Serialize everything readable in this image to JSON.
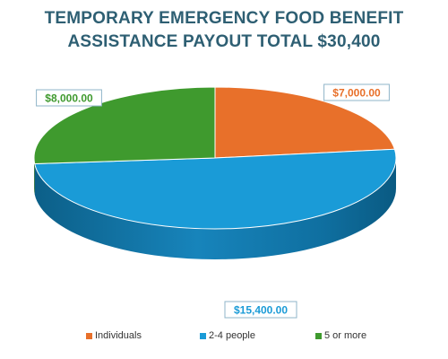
{
  "chart_data": {
    "type": "pie",
    "title_lines": [
      "TEMPORARY EMERGENCY FOOD BENEFIT",
      "ASSISTANCE PAYOUT TOTAL $30,400"
    ],
    "categories": [
      "Individuals",
      "2-4 people",
      "5 or more"
    ],
    "values": [
      7000,
      15400,
      8000
    ],
    "data_labels": [
      "$7,000.00",
      "$15,400.00",
      "$8,000.00"
    ],
    "colors": [
      "#e8702a",
      "#1a9bd7",
      "#3f9a2e"
    ],
    "legend_position": "bottom",
    "style": "3d"
  }
}
